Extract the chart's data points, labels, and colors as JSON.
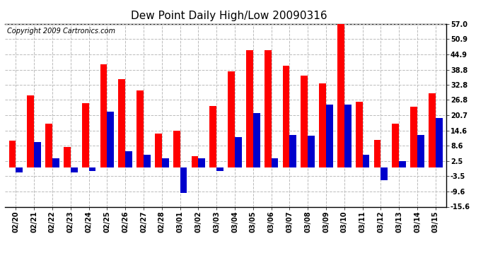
{
  "title": "Dew Point Daily High/Low 20090316",
  "copyright": "Copyright 2009 Cartronics.com",
  "dates": [
    "02/20",
    "02/21",
    "02/22",
    "02/23",
    "02/24",
    "02/25",
    "02/26",
    "02/27",
    "02/28",
    "03/01",
    "03/02",
    "03/03",
    "03/04",
    "03/05",
    "03/06",
    "03/07",
    "03/08",
    "03/09",
    "03/10",
    "03/11",
    "03/12",
    "03/13",
    "03/14",
    "03/15"
  ],
  "highs": [
    10.5,
    28.5,
    17.5,
    8.0,
    25.5,
    41.0,
    35.0,
    30.5,
    13.5,
    14.5,
    4.5,
    24.5,
    38.0,
    46.5,
    46.5,
    40.5,
    36.5,
    33.5,
    57.0,
    26.0,
    11.0,
    17.5,
    24.0,
    29.5
  ],
  "lows": [
    -2.0,
    10.0,
    3.5,
    -2.0,
    -1.5,
    22.0,
    6.5,
    5.0,
    3.5,
    -10.0,
    3.5,
    -1.5,
    12.0,
    21.5,
    3.5,
    13.0,
    12.5,
    25.0,
    25.0,
    5.0,
    -5.0,
    2.5,
    13.0,
    19.5
  ],
  "high_color": "#ff0000",
  "low_color": "#0000cc",
  "background_color": "#ffffff",
  "grid_color": "#bbbbbb",
  "yticks": [
    -15.6,
    -9.6,
    -3.5,
    2.5,
    8.6,
    14.6,
    20.7,
    26.8,
    32.8,
    38.8,
    44.9,
    50.9,
    57.0
  ],
  "ylim": [
    -15.6,
    57.0
  ],
  "bar_width": 0.38,
  "title_fontsize": 11,
  "tick_fontsize": 7,
  "copyright_fontsize": 7
}
